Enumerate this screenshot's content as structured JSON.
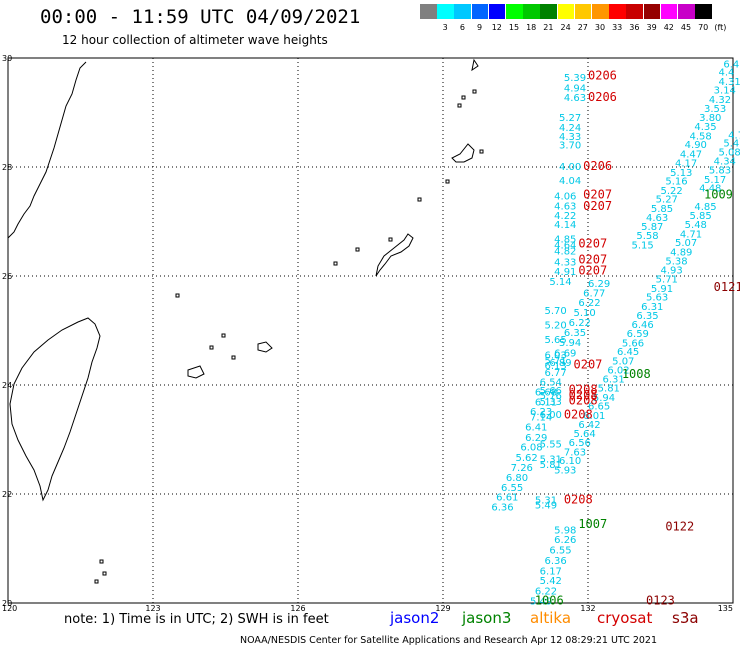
{
  "header": {
    "title": "00:00 - 11:59 UTC 04/09/2021",
    "subtitle": "12 hour collection of altimeter wave heights"
  },
  "legend": {
    "unit": "(ft)",
    "items": [
      {
        "label": "",
        "color": "#808080"
      },
      {
        "label": "3",
        "color": "#00ffff"
      },
      {
        "label": "6",
        "color": "#00c8ff"
      },
      {
        "label": "9",
        "color": "#0064ff"
      },
      {
        "label": "12",
        "color": "#0000ff"
      },
      {
        "label": "15",
        "color": "#00ff00"
      },
      {
        "label": "18",
        "color": "#00c800"
      },
      {
        "label": "21",
        "color": "#008200"
      },
      {
        "label": "24",
        "color": "#ffff00"
      },
      {
        "label": "27",
        "color": "#ffc800"
      },
      {
        "label": "30",
        "color": "#ff9600"
      },
      {
        "label": "33",
        "color": "#ff0000"
      },
      {
        "label": "36",
        "color": "#c80000"
      },
      {
        "label": "39",
        "color": "#960000"
      },
      {
        "label": "42",
        "color": "#ff00ff"
      },
      {
        "label": "45",
        "color": "#c800c8"
      },
      {
        "label": "70",
        "color": "#000000"
      }
    ]
  },
  "axes": {
    "lon_ticks": [
      "120",
      "123",
      "126",
      "129",
      "132",
      "135"
    ],
    "lat_ticks": [
      "30",
      "28",
      "26",
      "24",
      "22",
      "20"
    ]
  },
  "map_data": {
    "lon_range": [
      120,
      135
    ],
    "lat_range": [
      20,
      30
    ],
    "colors": {
      "swh": "#00c8e6",
      "jason3": "#008200",
      "altika": "#ff8c00",
      "cryosat": "#d20000",
      "s3a": "#8b0000"
    },
    "swh_obs": [
      {
        "v": "5.39",
        "lon": 131.5,
        "lat": 29.65
      },
      {
        "v": "4.94",
        "lon": 131.5,
        "lat": 29.46
      },
      {
        "v": "4.63",
        "lon": 131.5,
        "lat": 29.28
      },
      {
        "v": "5.27",
        "lon": 131.4,
        "lat": 28.92
      },
      {
        "v": "4.24",
        "lon": 131.4,
        "lat": 28.73
      },
      {
        "v": "4.33",
        "lon": 131.4,
        "lat": 28.57
      },
      {
        "v": "3.70",
        "lon": 131.4,
        "lat": 28.41
      },
      {
        "v": "4.00",
        "lon": 131.4,
        "lat": 28.02
      },
      {
        "v": "4.04",
        "lon": 131.4,
        "lat": 27.76
      },
      {
        "v": "4.06",
        "lon": 131.3,
        "lat": 27.48
      },
      {
        "v": "4.63",
        "lon": 131.3,
        "lat": 27.29
      },
      {
        "v": "4.22",
        "lon": 131.3,
        "lat": 27.12
      },
      {
        "v": "4.14",
        "lon": 131.3,
        "lat": 26.95
      },
      {
        "v": "4.85",
        "lon": 131.3,
        "lat": 26.69
      },
      {
        "v": "4.64",
        "lon": 131.3,
        "lat": 26.58
      },
      {
        "v": "4.82",
        "lon": 131.3,
        "lat": 26.47
      },
      {
        "v": "4.33",
        "lon": 131.3,
        "lat": 26.27
      },
      {
        "v": "4.91",
        "lon": 131.3,
        "lat": 26.09
      },
      {
        "v": "5.14",
        "lon": 131.2,
        "lat": 25.91
      },
      {
        "v": "5.70",
        "lon": 131.1,
        "lat": 25.38
      },
      {
        "v": "5.20",
        "lon": 131.1,
        "lat": 25.11
      },
      {
        "v": "5.65",
        "lon": 131.1,
        "lat": 24.84
      },
      {
        "v": "6.03",
        "lon": 131.1,
        "lat": 24.56
      },
      {
        "v": "5.71",
        "lon": 131.1,
        "lat": 24.46
      },
      {
        "v": "6.13",
        "lon": 131.1,
        "lat": 24.37
      },
      {
        "v": "5.66",
        "lon": 131.0,
        "lat": 23.91
      },
      {
        "v": "5.76",
        "lon": 131.0,
        "lat": 23.82
      },
      {
        "v": "5.33",
        "lon": 131.0,
        "lat": 23.71
      },
      {
        "v": "6.00",
        "lon": 131.0,
        "lat": 23.47
      },
      {
        "v": "5.55",
        "lon": 131.0,
        "lat": 22.93
      },
      {
        "v": "5.31",
        "lon": 131.0,
        "lat": 22.65
      },
      {
        "v": "5.81",
        "lon": 131.0,
        "lat": 22.55
      },
      {
        "v": "5.31",
        "lon": 130.9,
        "lat": 21.9
      },
      {
        "v": "5.49",
        "lon": 130.9,
        "lat": 21.81
      },
      {
        "v": "5.98",
        "lon": 131.3,
        "lat": 21.35
      },
      {
        "v": "6.26",
        "lon": 131.3,
        "lat": 21.17
      },
      {
        "v": "6.55",
        "lon": 131.2,
        "lat": 20.98
      },
      {
        "v": "6.36",
        "lon": 131.1,
        "lat": 20.79
      },
      {
        "v": "6.17",
        "lon": 131.0,
        "lat": 20.6
      },
      {
        "v": "5.42",
        "lon": 131.0,
        "lat": 20.42
      },
      {
        "v": "6.22",
        "lon": 130.9,
        "lat": 20.23
      },
      {
        "v": "5.49",
        "lon": 130.8,
        "lat": 20.05
      },
      {
        "v": "6.29",
        "lon": 132.0,
        "lat": 25.87
      },
      {
        "v": "6.77",
        "lon": 131.9,
        "lat": 25.7
      },
      {
        "v": "6.22",
        "lon": 131.8,
        "lat": 25.52
      },
      {
        "v": "5.10",
        "lon": 131.7,
        "lat": 25.34
      },
      {
        "v": "6.22",
        "lon": 131.6,
        "lat": 25.16
      },
      {
        "v": "6.35",
        "lon": 131.5,
        "lat": 24.97
      },
      {
        "v": "5.94",
        "lon": 131.4,
        "lat": 24.79
      },
      {
        "v": "6.69",
        "lon": 131.3,
        "lat": 24.6
      },
      {
        "v": "6.89",
        "lon": 131.2,
        "lat": 24.42
      },
      {
        "v": "6.77",
        "lon": 131.1,
        "lat": 24.24
      },
      {
        "v": "6.54",
        "lon": 131.0,
        "lat": 24.06
      },
      {
        "v": "6.68",
        "lon": 130.9,
        "lat": 23.88
      },
      {
        "v": "6.11",
        "lon": 130.9,
        "lat": 23.7
      },
      {
        "v": "6.23",
        "lon": 130.8,
        "lat": 23.52
      },
      {
        "v": "7.14",
        "lon": 130.8,
        "lat": 23.42
      },
      {
        "v": "6.41",
        "lon": 130.7,
        "lat": 23.24
      },
      {
        "v": "6.29",
        "lon": 130.7,
        "lat": 23.05
      },
      {
        "v": "6.08",
        "lon": 130.6,
        "lat": 22.87
      },
      {
        "v": "5.62",
        "lon": 130.5,
        "lat": 22.68
      },
      {
        "v": "7.26",
        "lon": 130.4,
        "lat": 22.5
      },
      {
        "v": "6.80",
        "lon": 130.3,
        "lat": 22.31
      },
      {
        "v": "6.55",
        "lon": 130.2,
        "lat": 22.13
      },
      {
        "v": "6.61",
        "lon": 130.1,
        "lat": 21.95
      },
      {
        "v": "6.36",
        "lon": 130.0,
        "lat": 21.77
      },
      {
        "v": "6.4",
        "lon": 134.8,
        "lat": 29.9
      },
      {
        "v": "4.4",
        "lon": 134.7,
        "lat": 29.75
      },
      {
        "v": "4.31",
        "lon": 134.7,
        "lat": 29.58
      },
      {
        "v": "3.14",
        "lon": 134.6,
        "lat": 29.42
      },
      {
        "v": "4.32",
        "lon": 134.5,
        "lat": 29.25
      },
      {
        "v": "3.53",
        "lon": 134.4,
        "lat": 29.08
      },
      {
        "v": "3.80",
        "lon": 134.3,
        "lat": 28.92
      },
      {
        "v": "4.35",
        "lon": 134.2,
        "lat": 28.75
      },
      {
        "v": "4.58",
        "lon": 134.1,
        "lat": 28.58
      },
      {
        "v": "4.90",
        "lon": 134.0,
        "lat": 28.42
      },
      {
        "v": "4.47",
        "lon": 133.9,
        "lat": 28.25
      },
      {
        "v": "4.17",
        "lon": 133.8,
        "lat": 28.08
      },
      {
        "v": "5.13",
        "lon": 133.7,
        "lat": 27.91
      },
      {
        "v": "5.16",
        "lon": 133.6,
        "lat": 27.75
      },
      {
        "v": "5.22",
        "lon": 133.5,
        "lat": 27.58
      },
      {
        "v": "5.27",
        "lon": 133.4,
        "lat": 27.42
      },
      {
        "v": "5.85",
        "lon": 133.3,
        "lat": 27.25
      },
      {
        "v": "4.63",
        "lon": 133.2,
        "lat": 27.08
      },
      {
        "v": "5.87",
        "lon": 133.1,
        "lat": 26.92
      },
      {
        "v": "5.58",
        "lon": 133.0,
        "lat": 26.75
      },
      {
        "v": "5.15",
        "lon": 132.9,
        "lat": 26.58
      },
      {
        "v": "4.75",
        "lon": 134.9,
        "lat": 28.6
      },
      {
        "v": "5.47",
        "lon": 134.8,
        "lat": 28.45
      },
      {
        "v": "5.08",
        "lon": 134.7,
        "lat": 28.28
      },
      {
        "v": "4.34",
        "lon": 134.6,
        "lat": 28.12
      },
      {
        "v": "5.83",
        "lon": 134.5,
        "lat": 27.95
      },
      {
        "v": "5.17",
        "lon": 134.4,
        "lat": 27.78
      },
      {
        "v": "4.48",
        "lon": 134.3,
        "lat": 27.62
      },
      {
        "v": "4.85",
        "lon": 134.2,
        "lat": 27.28
      },
      {
        "v": "5.85",
        "lon": 134.1,
        "lat": 27.12
      },
      {
        "v": "5.48",
        "lon": 134.0,
        "lat": 26.95
      },
      {
        "v": "4.71",
        "lon": 133.9,
        "lat": 26.78
      },
      {
        "v": "5.07",
        "lon": 133.8,
        "lat": 26.62
      },
      {
        "v": "4.89",
        "lon": 133.7,
        "lat": 26.45
      },
      {
        "v": "5.38",
        "lon": 133.6,
        "lat": 26.28
      },
      {
        "v": "4.93",
        "lon": 133.5,
        "lat": 26.12
      },
      {
        "v": "5.71",
        "lon": 133.4,
        "lat": 25.95
      },
      {
        "v": "5.91",
        "lon": 133.3,
        "lat": 25.78
      },
      {
        "v": "5.63",
        "lon": 133.2,
        "lat": 25.62
      },
      {
        "v": "6.31",
        "lon": 133.1,
        "lat": 25.45
      },
      {
        "v": "6.35",
        "lon": 133.0,
        "lat": 25.28
      },
      {
        "v": "6.46",
        "lon": 132.9,
        "lat": 25.12
      },
      {
        "v": "6.59",
        "lon": 132.8,
        "lat": 24.95
      },
      {
        "v": "5.66",
        "lon": 132.7,
        "lat": 24.78
      },
      {
        "v": "6.45",
        "lon": 132.6,
        "lat": 24.62
      },
      {
        "v": "5.07",
        "lon": 132.5,
        "lat": 24.45
      },
      {
        "v": "6.02",
        "lon": 132.4,
        "lat": 24.28
      },
      {
        "v": "6.31",
        "lon": 132.3,
        "lat": 24.12
      },
      {
        "v": "5.81",
        "lon": 132.2,
        "lat": 23.95
      },
      {
        "v": "5.94",
        "lon": 132.1,
        "lat": 23.78
      },
      {
        "v": "6.65",
        "lon": 132.0,
        "lat": 23.62
      },
      {
        "v": "6.01",
        "lon": 131.9,
        "lat": 23.45
      },
      {
        "v": "6.42",
        "lon": 131.8,
        "lat": 23.28
      },
      {
        "v": "5.64",
        "lon": 131.7,
        "lat": 23.12
      },
      {
        "v": "6.56",
        "lon": 131.6,
        "lat": 22.95
      },
      {
        "v": "7.63",
        "lon": 131.5,
        "lat": 22.78
      },
      {
        "v": "6.10",
        "lon": 131.4,
        "lat": 22.62
      },
      {
        "v": "5.93",
        "lon": 131.3,
        "lat": 22.45
      }
    ],
    "pass_labels": [
      {
        "v": "0206",
        "sat": "cryosat",
        "lon": 132.0,
        "lat": 29.68
      },
      {
        "v": "0206",
        "sat": "cryosat",
        "lon": 132.0,
        "lat": 29.28
      },
      {
        "v": "0206",
        "sat": "cryosat",
        "lon": 131.9,
        "lat": 28.02
      },
      {
        "v": "0207",
        "sat": "cryosat",
        "lon": 131.9,
        "lat": 27.5
      },
      {
        "v": "0207",
        "sat": "cryosat",
        "lon": 131.9,
        "lat": 27.28
      },
      {
        "v": "0207",
        "sat": "cryosat",
        "lon": 131.8,
        "lat": 26.6
      },
      {
        "v": "0207",
        "sat": "cryosat",
        "lon": 131.8,
        "lat": 26.3
      },
      {
        "v": "0207",
        "sat": "cryosat",
        "lon": 131.8,
        "lat": 26.1
      },
      {
        "v": "0207",
        "sat": "cryosat",
        "lon": 131.7,
        "lat": 24.38
      },
      {
        "v": "0208",
        "sat": "cryosat",
        "lon": 131.6,
        "lat": 23.92
      },
      {
        "v": "0208",
        "sat": "cryosat",
        "lon": 131.6,
        "lat": 23.82
      },
      {
        "v": "0208",
        "sat": "cryosat",
        "lon": 131.6,
        "lat": 23.72
      },
      {
        "v": "0208",
        "sat": "cryosat",
        "lon": 131.5,
        "lat": 23.46
      },
      {
        "v": "0208",
        "sat": "cryosat",
        "lon": 131.5,
        "lat": 21.9
      },
      {
        "v": "1009",
        "sat": "jason3",
        "lon": 134.4,
        "lat": 27.5
      },
      {
        "v": "1008",
        "sat": "jason3",
        "lon": 132.7,
        "lat": 24.2
      },
      {
        "v": "1007",
        "sat": "jason3",
        "lon": 131.8,
        "lat": 21.45
      },
      {
        "v": "1006",
        "sat": "jason3",
        "lon": 130.9,
        "lat": 20.05
      },
      {
        "v": "0121",
        "sat": "s3a",
        "lon": 134.6,
        "lat": 25.8
      },
      {
        "v": "0122",
        "sat": "s3a",
        "lon": 133.6,
        "lat": 21.4
      },
      {
        "v": "0123",
        "sat": "s3a",
        "lon": 133.2,
        "lat": 20.05
      }
    ]
  },
  "note": "note: 1) Time is in UTC; 2) SWH is in feet",
  "satellites": [
    {
      "name": "jason2",
      "color": "#0000ff"
    },
    {
      "name": "jason3",
      "color": "#008200"
    },
    {
      "name": "altika",
      "color": "#ff8c00"
    },
    {
      "name": "cryosat",
      "color": "#d20000"
    },
    {
      "name": "s3a",
      "color": "#8b0000"
    }
  ],
  "footer": "NOAA/NESDIS Center for Satellite Applications and Research     Apr 12 08:29:21 UTC 2021"
}
